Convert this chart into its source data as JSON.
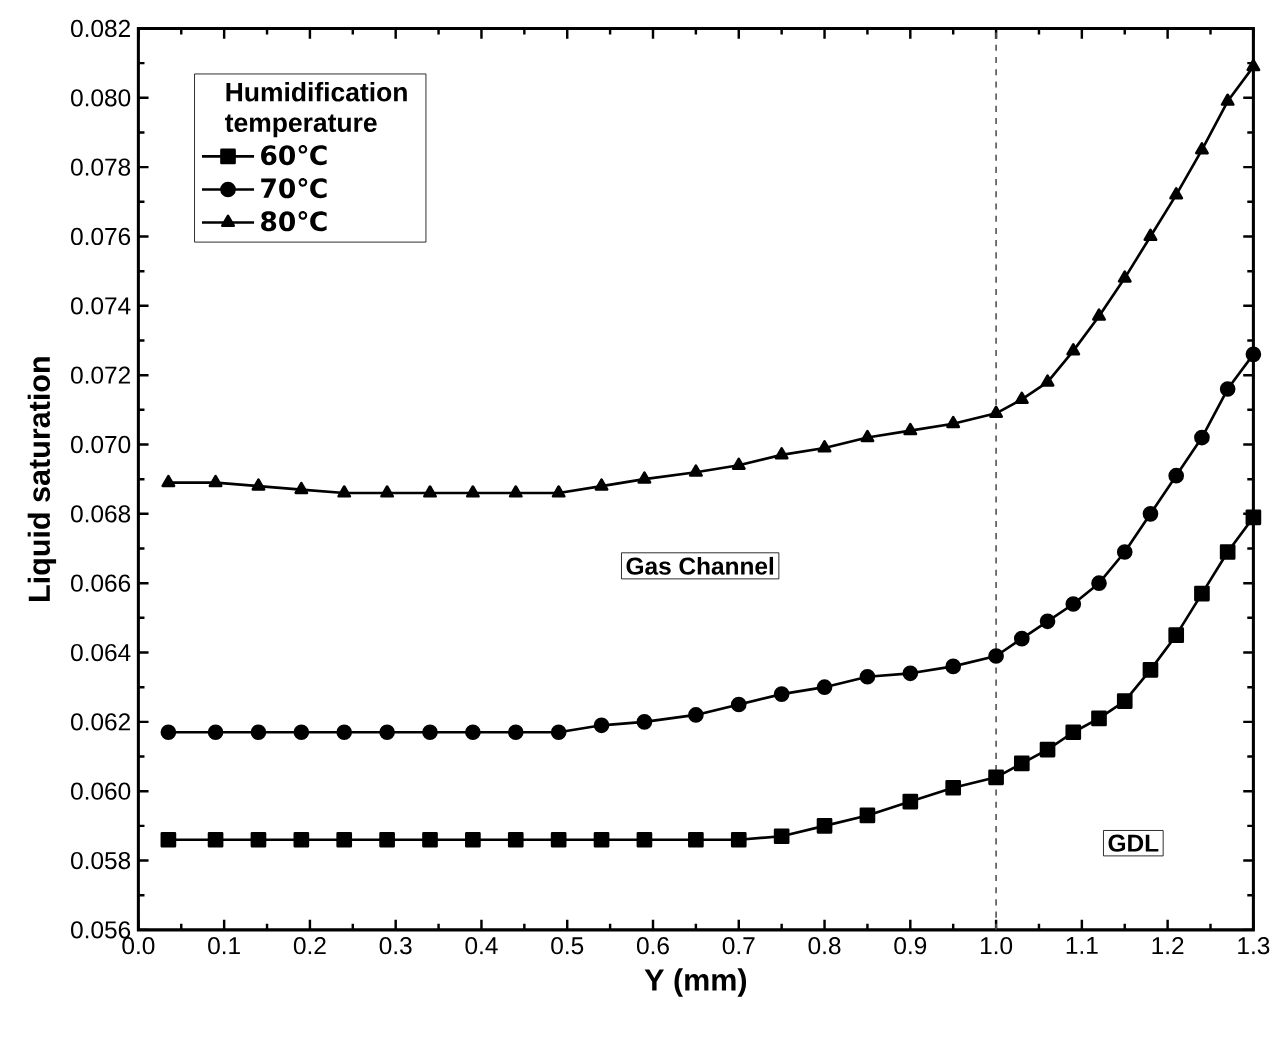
{
  "chart_data": {
    "type": "line",
    "xlabel": "Y (mm)",
    "ylabel": "Liquid saturation",
    "legend_title": "Humidification temperature",
    "xlim": [
      0.0,
      1.3
    ],
    "xticks": [
      {
        "value": 0,
        "label": "0.0"
      },
      0.1,
      0.2,
      0.3,
      0.4,
      0.5,
      0.6,
      0.7,
      0.8,
      0.9,
      {
        "value": 1,
        "label": "1.0"
      },
      1.1,
      1.2,
      1.3
    ],
    "ylim": [
      0.056,
      0.082
    ],
    "yticks": [
      0.056,
      0.058,
      {
        "value": 0.06,
        "label": "0.060"
      },
      0.062,
      0.064,
      0.066,
      0.068,
      {
        "value": 0.07,
        "label": "0.070"
      },
      0.072,
      0.074,
      0.076,
      0.078,
      {
        "value": 0.08,
        "label": "0.080"
      },
      0.082
    ],
    "x": [
      0.035,
      0.09,
      0.14,
      0.19,
      0.24,
      0.29,
      0.34,
      0.39,
      0.44,
      0.49,
      0.54,
      0.59,
      0.65,
      0.7,
      0.75,
      0.8,
      0.85,
      0.9,
      0.95,
      1.0,
      1.03,
      1.06,
      1.09,
      1.12,
      1.15,
      1.18,
      1.21,
      1.24,
      1.27,
      1.3
    ],
    "series": [
      {
        "name": "60℃",
        "color": "#000000",
        "marker": "square",
        "values": [
          0.0586,
          0.0586,
          0.0586,
          0.0586,
          0.0586,
          0.0586,
          0.0586,
          0.0586,
          0.0586,
          0.0586,
          0.0586,
          0.0586,
          0.0586,
          0.0586,
          0.0587,
          0.059,
          0.0593,
          0.0597,
          0.0601,
          0.0604,
          0.0608,
          0.0612,
          0.0617,
          0.0621,
          0.0626,
          0.0635,
          0.0645,
          0.0657,
          0.0669,
          0.0679
        ]
      },
      {
        "name": "70℃",
        "color": "#000000",
        "marker": "circle",
        "values": [
          0.0617,
          0.0617,
          0.0617,
          0.0617,
          0.0617,
          0.0617,
          0.0617,
          0.0617,
          0.0617,
          0.0617,
          0.0619,
          0.062,
          0.0622,
          0.0625,
          0.0628,
          0.063,
          0.0633,
          0.0634,
          0.0636,
          0.0639,
          0.0644,
          0.0649,
          0.0654,
          0.066,
          0.0669,
          0.068,
          0.0691,
          0.0702,
          0.0716,
          0.0726
        ]
      },
      {
        "name": "80℃",
        "color": "#000000",
        "marker": "triangle",
        "values": [
          0.0689,
          0.0689,
          0.0688,
          0.0687,
          0.0686,
          0.0686,
          0.0686,
          0.0686,
          0.0686,
          0.0686,
          0.0688,
          0.069,
          0.0692,
          0.0694,
          0.0697,
          0.0699,
          0.0702,
          0.0704,
          0.0706,
          0.0709,
          0.0713,
          0.0718,
          0.0727,
          0.0737,
          0.0748,
          0.076,
          0.0772,
          0.0785,
          0.0799,
          0.0809
        ]
      }
    ],
    "ref_lines": [
      {
        "axis": "x",
        "value": 1.0,
        "line_style": "dashed",
        "color": "#555555"
      }
    ],
    "annotations": [
      "Gas Channel",
      "GDL"
    ],
    "legend": "top left",
    "line_style": "solid",
    "grid": false
  }
}
